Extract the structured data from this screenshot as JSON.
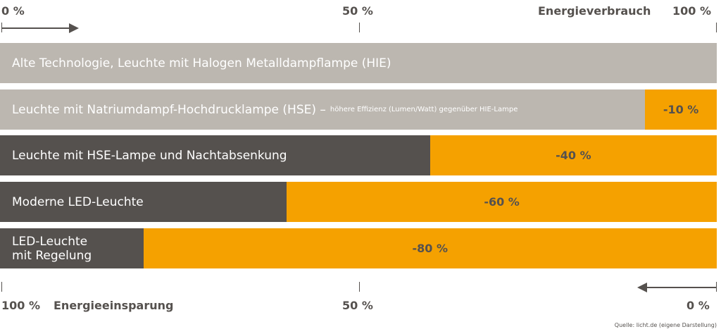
{
  "colors": {
    "light_bar": "#bcb7b0",
    "dark_bar": "#55514e",
    "saving": "#f5a100",
    "text_dark": "#55514e"
  },
  "top_axis": {
    "left_label": "0 %",
    "mid_label": "50 %",
    "right_label": "100 %",
    "title": "Energieverbrauch"
  },
  "bottom_axis": {
    "left_label": "100 %",
    "title": "Energieeinsparung",
    "mid_label": "50 %",
    "right_label": "0 %"
  },
  "source": "Quelle: licht.de (eigene Darstellung)",
  "chart_data": {
    "type": "bar",
    "orientation": "horizontal-stacked",
    "xlabel_top": "Energieverbrauch",
    "xlabel_bottom": "Energieeinsparung",
    "xlim": [
      0,
      100
    ],
    "categories": [
      "Alte Technologie, Leuchte mit Halogen Metalldampflampe (HIE)",
      "Leuchte mit Natriumdampf-Hochdrucklampe (HSE)",
      "Leuchte mit HSE-Lampe und Nachtabsenkung",
      "Moderne LED-Leuchte",
      "LED-Leuchte mit Regelung"
    ],
    "bars": [
      {
        "label": "Alte Technologie, Leuchte mit Halogen Metalldampflampe (HIE)",
        "note": "",
        "consumption": 100,
        "saving": 0,
        "saving_label": "",
        "style": "light"
      },
      {
        "label": "Leuchte mit Natriumdampf-Hochdrucklampe (HSE) –",
        "note": "höhere Effizienz (Lumen/Watt) gegenüber HIE-Lampe",
        "consumption": 90,
        "saving": 10,
        "saving_label": "-10 %",
        "style": "light"
      },
      {
        "label": "Leuchte mit HSE-Lampe und Nachtabsenkung",
        "note": "",
        "consumption": 60,
        "saving": 40,
        "saving_label": "-40 %",
        "style": "dark"
      },
      {
        "label": "Moderne LED-Leuchte",
        "note": "",
        "consumption": 40,
        "saving": 60,
        "saving_label": "-60 %",
        "style": "dark"
      },
      {
        "label": "LED-Leuchte\nmit Regelung",
        "note": "",
        "consumption": 20,
        "saving": 80,
        "saving_label": "-80 %",
        "style": "dark"
      }
    ]
  }
}
